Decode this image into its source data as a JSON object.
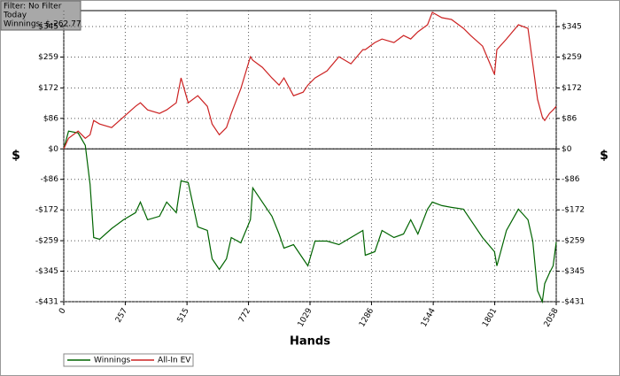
{
  "info": {
    "filter": "Filter: No Filter",
    "period": "Today",
    "winnings": "Winnings: $-262.77"
  },
  "chart_data": {
    "type": "line",
    "x_label": "Hands",
    "y_label": "$",
    "y2_label": "$",
    "x": [
      0,
      20,
      60,
      90,
      110,
      125,
      150,
      200,
      250,
      300,
      320,
      350,
      400,
      430,
      470,
      490,
      520,
      560,
      600,
      620,
      650,
      680,
      700,
      740,
      780,
      790,
      830,
      870,
      900,
      920,
      960,
      1000,
      1020,
      1050,
      1100,
      1150,
      1200,
      1250,
      1260,
      1300,
      1330,
      1380,
      1420,
      1450,
      1480,
      1520,
      1540,
      1580,
      1620,
      1670,
      1700,
      1750,
      1800,
      1810,
      1850,
      1900,
      1940,
      1960,
      1980,
      2000,
      2010,
      2030,
      2045,
      2058
    ],
    "series": [
      {
        "name": "Winnings",
        "color": "#006400",
        "values": [
          0,
          50,
          45,
          10,
          -100,
          -250,
          -255,
          -225,
          -200,
          -180,
          -150,
          -200,
          -190,
          -150,
          -180,
          -90,
          -95,
          -220,
          -230,
          -310,
          -340,
          -310,
          -250,
          -265,
          -200,
          -110,
          -150,
          -190,
          -240,
          -280,
          -270,
          -310,
          -330,
          -260,
          -260,
          -270,
          -250,
          -230,
          -300,
          -290,
          -230,
          -250,
          -240,
          -200,
          -240,
          -170,
          -150,
          -160,
          -165,
          -170,
          -200,
          -250,
          -290,
          -330,
          -230,
          -170,
          -200,
          -260,
          -400,
          -431,
          -380,
          -350,
          -330,
          -262.77
        ]
      },
      {
        "name": "All-In EV",
        "color": "#cc2222",
        "values": [
          0,
          30,
          50,
          30,
          40,
          80,
          70,
          60,
          90,
          120,
          130,
          110,
          100,
          110,
          130,
          200,
          130,
          150,
          120,
          70,
          40,
          60,
          100,
          170,
          260,
          250,
          230,
          200,
          180,
          200,
          150,
          160,
          180,
          200,
          220,
          260,
          240,
          280,
          280,
          300,
          310,
          300,
          320,
          310,
          330,
          350,
          385,
          370,
          365,
          340,
          320,
          290,
          210,
          280,
          310,
          350,
          340,
          240,
          140,
          90,
          80,
          100,
          110,
          120
        ]
      }
    ],
    "xlim": [
      0,
      2058
    ],
    "xticks": [
      0,
      257,
      515,
      772,
      1029,
      1286,
      1544,
      1801,
      2058
    ],
    "ylim": [
      -431,
      390
    ],
    "yticks": [
      {
        "value": 345,
        "label": "$345"
      },
      {
        "value": 259,
        "label": "$259"
      },
      {
        "value": 172,
        "label": "$172"
      },
      {
        "value": 86,
        "label": "$86"
      },
      {
        "value": 0,
        "label": "$0"
      },
      {
        "value": -86,
        "label": "-$86"
      },
      {
        "value": -172,
        "label": "-$172"
      },
      {
        "value": -259,
        "label": "-$259"
      },
      {
        "value": -345,
        "label": "-$345"
      },
      {
        "value": -431,
        "label": "-$431"
      }
    ],
    "grid": true
  }
}
